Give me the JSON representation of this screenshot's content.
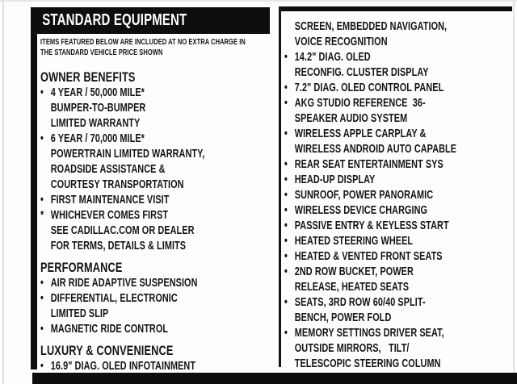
{
  "header": {
    "title": "STANDARD EQUIPMENT",
    "subtitle_line1": "ITEMS FEATURED BELOW ARE INCLUDED AT NO EXTRA CHARGE IN",
    "subtitle_line2": "THE STANDARD VEHICLE PRICE SHOWN"
  },
  "colors": {
    "bar_black": "#0e0e0e",
    "page_background": "#fdfdfd",
    "text": "#141414",
    "header_text": "#ffffff"
  },
  "columns": {
    "left": {
      "sections": [
        {
          "heading": "OWNER BENEFITS",
          "items": [
            {
              "marker": "•",
              "lines": [
                "4 YEAR / 50,000 MILE*",
                "BUMPER-TO-BUMPER",
                "LIMITED WARRANTY"
              ]
            },
            {
              "marker": "•",
              "lines": [
                "6 YEAR / 70,000 MILE*",
                "POWERTRAIN LIMITED WARRANTY,",
                "ROADSIDE ASSISTANCE &",
                "COURTESY TRANSPORTATION"
              ]
            },
            {
              "marker": "•",
              "lines": [
                "FIRST MAINTENANCE VISIT"
              ]
            },
            {
              "marker": "*",
              "lines": [
                "WHICHEVER COMES FIRST",
                "SEE CADILLAC.COM OR DEALER",
                "FOR TERMS, DETAILS & LIMITS"
              ]
            }
          ]
        },
        {
          "heading": "PERFORMANCE",
          "items": [
            {
              "marker": "•",
              "lines": [
                "AIR RIDE ADAPTIVE SUSPENSION"
              ]
            },
            {
              "marker": "•",
              "lines": [
                "DIFFERENTIAL, ELECTRONIC",
                "LIMITED SLIP"
              ]
            },
            {
              "marker": "•",
              "lines": [
                "MAGNETIC RIDE CONTROL"
              ]
            }
          ]
        },
        {
          "heading": "LUXURY & CONVENIENCE",
          "items": [
            {
              "marker": "•",
              "lines": [
                "16.9\" DIAG. OLED INFOTAINMENT"
              ]
            }
          ]
        }
      ]
    },
    "right": {
      "sections": [
        {
          "heading": "",
          "items": [
            {
              "marker": "",
              "lines": [
                "SCREEN, EMBEDDED NAVIGATION,",
                "VOICE RECOGNITION"
              ]
            },
            {
              "marker": "•",
              "lines": [
                "14.2\" DIAG. OLED",
                "RECONFIG. CLUSTER DISPLAY"
              ]
            },
            {
              "marker": "•",
              "lines": [
                "7.2\" DIAG. OLED CONTROL PANEL"
              ]
            },
            {
              "marker": "•",
              "lines": [
                "AKG STUDIO REFERENCE  36-",
                "SPEAKER AUDIO SYSTEM"
              ]
            },
            {
              "marker": "•",
              "lines": [
                "WIRELESS APPLE CARPLAY &",
                "WIRELESS ANDROID AUTO CAPABLE"
              ]
            },
            {
              "marker": "•",
              "lines": [
                "REAR SEAT ENTERTAINMENT SYS"
              ]
            },
            {
              "marker": "•",
              "lines": [
                "HEAD-UP DISPLAY"
              ]
            },
            {
              "marker": "•",
              "lines": [
                "SUNROOF, POWER PANORAMIC"
              ]
            },
            {
              "marker": "•",
              "lines": [
                "WIRELESS DEVICE CHARGING"
              ]
            },
            {
              "marker": "•",
              "lines": [
                "PASSIVE ENTRY & KEYLESS START"
              ]
            },
            {
              "marker": "•",
              "lines": [
                "HEATED STEERING WHEEL"
              ]
            },
            {
              "marker": "•",
              "lines": [
                "HEATED & VENTED FRONT SEATS"
              ]
            },
            {
              "marker": "•",
              "lines": [
                "2ND ROW BUCKET, POWER",
                "RELEASE, HEATED SEATS"
              ]
            },
            {
              "marker": "•",
              "lines": [
                "SEATS, 3RD ROW 60/40 SPLIT-",
                "BENCH, POWER FOLD"
              ]
            },
            {
              "marker": "•",
              "lines": [
                "MEMORY SETTINGS DRIVER SEAT,",
                "OUTSIDE MIRRORS,   TILT/",
                "TELESCOPIC STEERING COLUMN"
              ]
            }
          ]
        }
      ]
    }
  }
}
